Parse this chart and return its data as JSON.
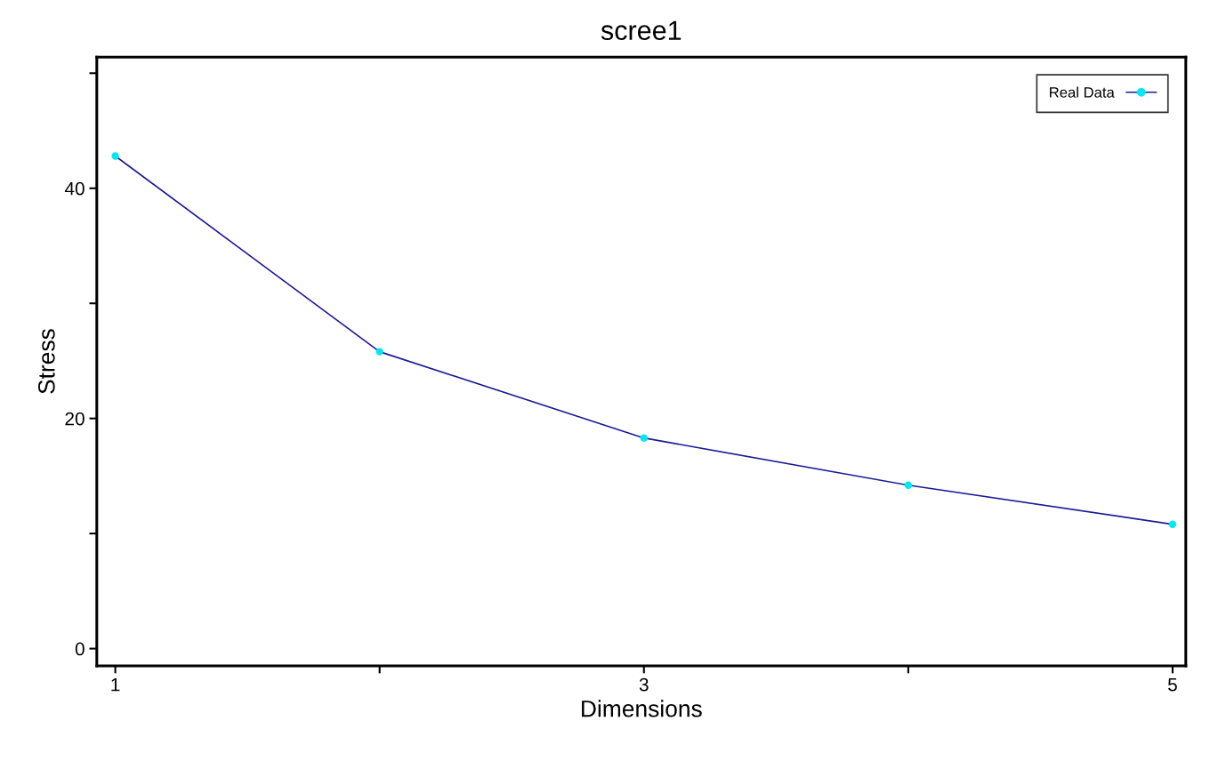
{
  "chart_data": {
    "type": "line",
    "title": "scree1",
    "xlabel": "Dimensions",
    "ylabel": "Stress",
    "x": [
      1,
      2,
      3,
      4,
      5
    ],
    "series": [
      {
        "name": "Real Data",
        "color": "#1c1c96",
        "colors": [
          "#00e8f0",
          "#00e8f0",
          "#00e8f0",
          "#00e8f0",
          "#00e8f0"
        ],
        "values": [
          42.8,
          25.8,
          18.3,
          14.2,
          10.8
        ]
      }
    ],
    "xlim": [
      0.93,
      5.05
    ],
    "xticks": [
      1,
      {
        "value": 2,
        "label": null
      },
      3,
      {
        "value": 4,
        "label": null
      },
      5
    ],
    "ylim": [
      -1.5,
      51.4
    ],
    "yticks": [
      0,
      {
        "value": 10,
        "label": null
      },
      20,
      {
        "value": 30,
        "label": null
      },
      40,
      {
        "value": 50,
        "label": null
      }
    ],
    "marker": "circle",
    "line_style": "solid",
    "grid": false,
    "legend": "top right"
  }
}
